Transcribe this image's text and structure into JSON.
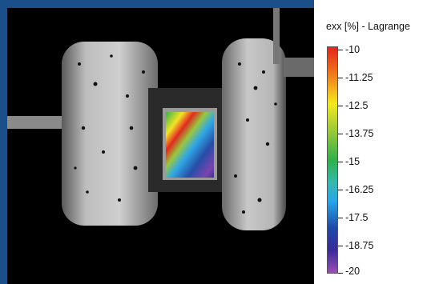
{
  "legend": {
    "title": "exx [%] - Lagrange",
    "ticks": [
      "-10",
      "-11.25",
      "-12.5",
      "-13.75",
      "-15",
      "-16.25",
      "-17.5",
      "-18.75",
      "-20"
    ]
  },
  "colors": {
    "frame": "#1a4f8a",
    "background": "#000000",
    "colormap": [
      "#e4241a",
      "#f07a19",
      "#f5e81f",
      "#9bc83a",
      "#2fb24a",
      "#35b7b0",
      "#2aa7e8",
      "#1f4aa8",
      "#3a2a9a",
      "#9b4fb0"
    ]
  }
}
